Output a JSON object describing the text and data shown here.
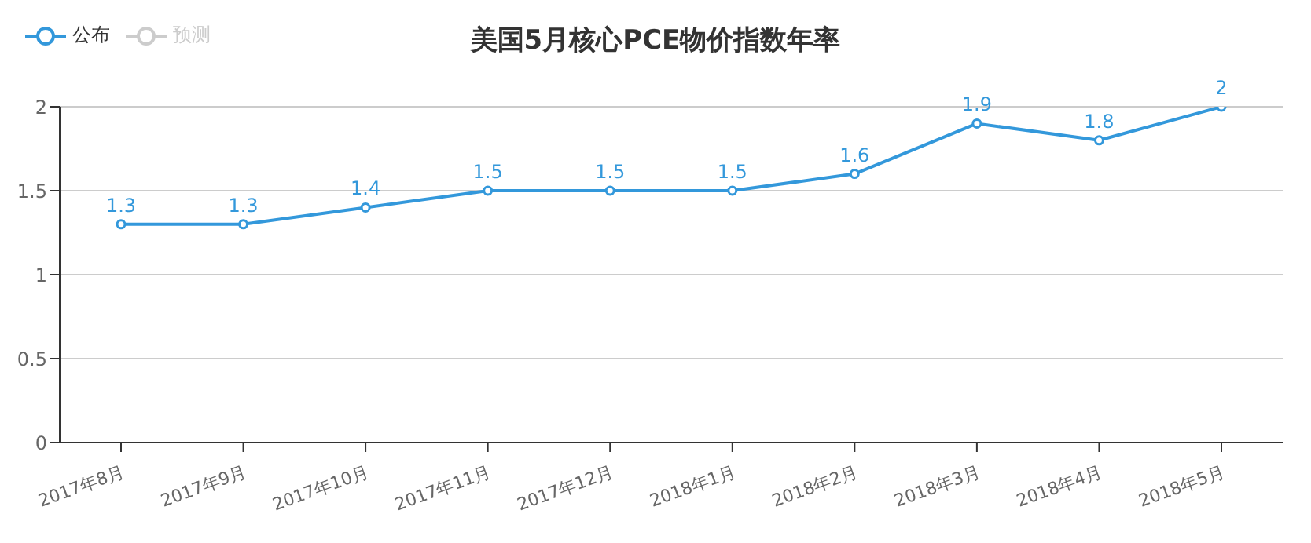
{
  "chart_data": {
    "type": "line",
    "title": "美国5月核心PCE物价指数年率",
    "categories": [
      "2017年8月",
      "2017年9月",
      "2017年10月",
      "2017年11月",
      "2017年12月",
      "2018年1月",
      "2018年2月",
      "2018年3月",
      "2018年4月",
      "2018年5月"
    ],
    "series": [
      {
        "name": "公布",
        "color": "#3398db",
        "values": [
          1.3,
          1.3,
          1.4,
          1.5,
          1.5,
          1.5,
          1.6,
          1.9,
          1.8,
          2
        ]
      },
      {
        "name": "预测",
        "color": "#cccccc",
        "values": [
          null,
          null,
          null,
          null,
          null,
          null,
          null,
          null,
          null,
          null
        ]
      }
    ],
    "ylim": [
      0,
      2
    ],
    "yticks": [
      0,
      0.5,
      1,
      1.5,
      2
    ],
    "grid": "y",
    "legend": "top left",
    "marker": "circle",
    "line_style": "solid",
    "data_labels": true
  }
}
